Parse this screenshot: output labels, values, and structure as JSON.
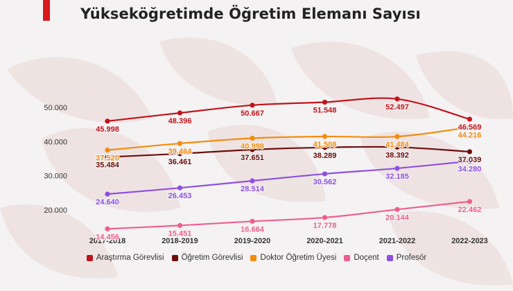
{
  "header": {
    "title": "Yükseköğretimde Öğretim Elemanı Sayısı",
    "accent_color": "#d7191f"
  },
  "chart_data": {
    "type": "line",
    "title": "Yükseköğretimde Öğretim Elemanı Sayısı",
    "xlabel": "",
    "ylabel": "",
    "categories": [
      "2017-2018",
      "2018-2019",
      "2019-2020",
      "2020-2021",
      "2021-2022",
      "2022-2023"
    ],
    "ylim": [
      12000,
      54000
    ],
    "yticks": [
      20000,
      30000,
      40000,
      50000
    ],
    "ytick_labels": [
      "20.000",
      "30.000",
      "40.000",
      "50.000"
    ],
    "grid": false,
    "legend_position": "bottom",
    "series": [
      {
        "name": "Araştırma Görevlisi",
        "color": "#c0141c",
        "values": [
          45998,
          48396,
          50667,
          51548,
          52497,
          46569
        ],
        "labels": [
          "45.998",
          "48.396",
          "50.667",
          "51.548",
          "52.497",
          "46.569"
        ]
      },
      {
        "name": "Öğretim Görevlisi",
        "color": "#6b0d0d",
        "values": [
          35484,
          36461,
          37651,
          38289,
          38392,
          37039
        ],
        "labels": [
          "35.484",
          "36.461",
          "37.651",
          "38.289",
          "38.392",
          "37.039"
        ]
      },
      {
        "name": "Doktor Öğretim Üyesi",
        "color": "#f28c0f",
        "values": [
          37520,
          39464,
          40998,
          41508,
          41484,
          44216
        ],
        "labels": [
          "37.520",
          "39.464",
          "40.998",
          "41.508",
          "41.484",
          "44.216"
        ]
      },
      {
        "name": "Doçent",
        "color": "#ee5f8e",
        "values": [
          14456,
          15451,
          16664,
          17778,
          20144,
          22462
        ],
        "labels": [
          "14.456",
          "15.451",
          "16.664",
          "17.778",
          "20.144",
          "22.462"
        ]
      },
      {
        "name": "Profesör",
        "color": "#8e4fe0",
        "values": [
          24640,
          26453,
          28514,
          30562,
          32185,
          34280
        ],
        "labels": [
          "24.640",
          "26.453",
          "28.514",
          "30.562",
          "32.185",
          "34.280"
        ]
      }
    ]
  }
}
